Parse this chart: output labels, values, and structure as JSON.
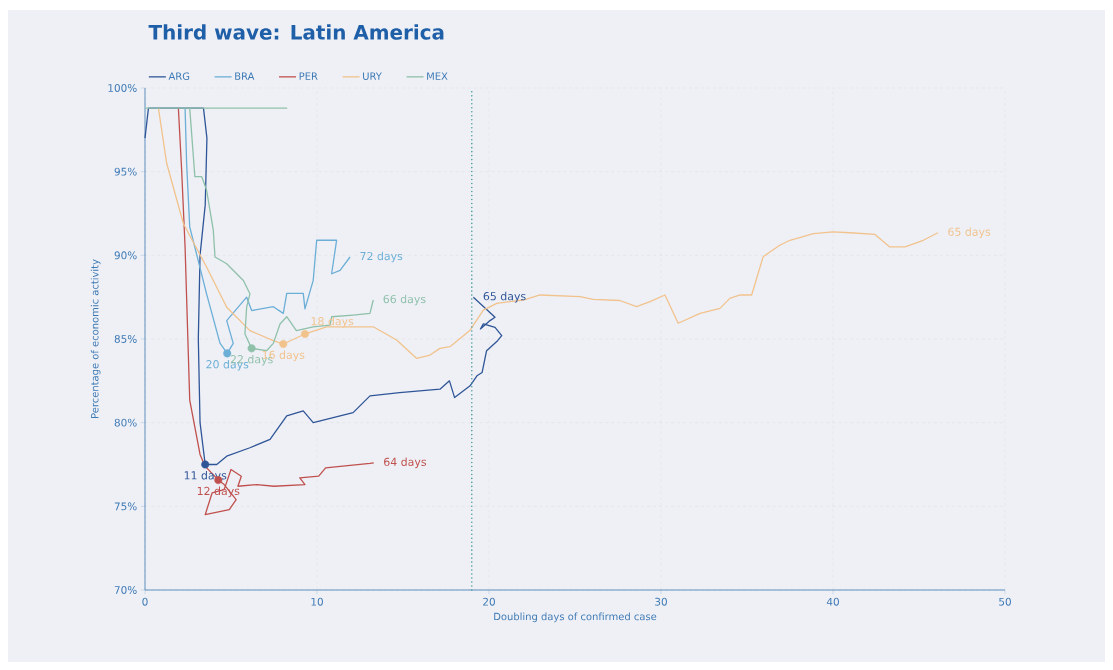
{
  "chart_data": {
    "type": "line",
    "title": "Third wave: Latin America",
    "xlabel": "Doubling days of confirmed case",
    "ylabel": "Percentage of economic activity",
    "xlim": [
      0,
      50
    ],
    "xticks": [
      0,
      10,
      20,
      30,
      40,
      50
    ],
    "ylim": [
      70,
      100
    ],
    "yticks": [
      {
        "value": 70,
        "label": "70%"
      },
      {
        "value": 75,
        "label": "75%"
      },
      {
        "value": 80,
        "label": "80%"
      },
      {
        "value": 85,
        "label": "85%"
      },
      {
        "value": 90,
        "label": "90%"
      },
      {
        "value": 95,
        "label": "95%"
      },
      {
        "value": 100,
        "label": "100%"
      }
    ],
    "grid": true,
    "legend": "top left",
    "annotations": [
      {
        "text": "65 days",
        "x": 19.09,
        "y": 87.5
      },
      {
        "text": "72 days",
        "x": 11.92,
        "y": 89.9
      },
      {
        "text": "64 days",
        "x": 13.3,
        "y": 77.6
      },
      {
        "text": "65 days",
        "x": 46.1,
        "y": 91.35
      },
      {
        "text": "66 days",
        "x": 13.27,
        "y": 87.33
      },
      {
        "text": "11 days",
        "x": 3.5,
        "y": 77.5
      },
      {
        "text": "12 days",
        "x": 4.26,
        "y": 76.57
      },
      {
        "text": "20 days",
        "x": 4.78,
        "y": 84.14
      },
      {
        "text": "22 days",
        "x": 6.2,
        "y": 84.44
      },
      {
        "text": "16 days",
        "x": 8.04,
        "y": 84.7
      },
      {
        "text": "18 days",
        "x": 9.3,
        "y": 85.3
      }
    ],
    "ref_lines": [
      {
        "axis": "x",
        "value": 19,
        "color": "#4a9e9c",
        "line_style": "dotted"
      }
    ],
    "series": [
      {
        "name": "ARG",
        "color": "#2f5597",
        "x": [
          0,
          0.2,
          3.4,
          3.6,
          3.5,
          3.2,
          3.1,
          3.2,
          3.5,
          4.17,
          4.75,
          6.1,
          7.27,
          8.24,
          9.2,
          9.78,
          12.1,
          13.08,
          14.8,
          17.15,
          17.7,
          18.0,
          18.9,
          19.3,
          19.6,
          19.86,
          20.5,
          20.74,
          20.35,
          19.67,
          19.5,
          20.06,
          20.35,
          19.09
        ],
        "values": [
          97,
          98.8,
          98.8,
          97,
          93,
          90,
          85,
          80,
          77.5,
          77.5,
          78,
          78.5,
          79,
          80.4,
          80.7,
          80.0,
          80.6,
          81.6,
          81.8,
          82,
          82.5,
          81.5,
          82.2,
          82.8,
          83,
          84.3,
          84.9,
          85.2,
          85.7,
          85.9,
          85.6,
          86.1,
          86.3,
          87.5
        ]
      },
      {
        "name": "BRA",
        "color": "#6baed6",
        "x": [
          2.33,
          2.42,
          2.6,
          3.58,
          4.36,
          4.78,
          5.13,
          4.75,
          5.91,
          6.2,
          7.46,
          8.04,
          8.24,
          9.2,
          9.3,
          9.78,
          9.98,
          11.14,
          10.85,
          11.34,
          11.92
        ],
        "values": [
          98.8,
          95.5,
          91.7,
          87.7,
          84.75,
          84.14,
          84.74,
          86.1,
          87.5,
          86.7,
          86.93,
          86.53,
          87.73,
          87.73,
          86.8,
          88.5,
          90.9,
          90.9,
          88.9,
          89.1,
          89.9
        ]
      },
      {
        "name": "PER",
        "color": "#c0504d",
        "x": [
          1.94,
          2.13,
          2.33,
          2.6,
          3.2,
          3.49,
          4.26,
          4.6,
          5.3,
          4.9,
          3.5,
          3.9,
          4.6,
          5.0,
          5.6,
          5.4,
          6.5,
          7.5,
          9.3,
          9.0,
          10.1,
          10.5,
          11.5,
          13.08,
          13.3
        ],
        "values": [
          98.8,
          95.1,
          90.5,
          81.35,
          78.1,
          77.4,
          76.57,
          76.3,
          75.4,
          74.8,
          74.5,
          75.8,
          76.0,
          77.2,
          76.8,
          76.2,
          76.3,
          76.2,
          76.3,
          76.7,
          76.8,
          77.3,
          77.4,
          77.57,
          77.6
        ]
      },
      {
        "name": "URY",
        "color": "#f2c28c",
        "x": [
          0.78,
          1.26,
          2.23,
          3.58,
          4.75,
          6.1,
          7.46,
          8.04,
          9.3,
          10.56,
          13.27,
          14.63,
          15.8,
          16.57,
          17.15,
          17.73,
          18.9,
          19.67,
          20.45,
          21.99,
          22.97,
          25.3,
          26.06,
          27.6,
          28.58,
          29.36,
          30.23,
          31.0,
          32.27,
          33.43,
          34.0,
          34.6,
          35.27,
          35.94,
          36.9,
          37.5,
          38.86,
          40.0,
          40.99,
          42.44,
          43.3,
          44.19,
          45.25,
          46.1
        ],
        "values": [
          98.8,
          95.5,
          91.9,
          89.3,
          86.9,
          85.5,
          84.9,
          84.7,
          85.3,
          85.73,
          85.73,
          84.94,
          83.84,
          84.04,
          84.44,
          84.54,
          85.53,
          86.73,
          87.13,
          87.33,
          87.63,
          87.53,
          87.37,
          87.3,
          86.93,
          87.23,
          87.63,
          85.94,
          86.53,
          86.83,
          87.43,
          87.63,
          87.63,
          89.92,
          90.6,
          90.9,
          91.3,
          91.4,
          91.35,
          91.25,
          90.5,
          90.5,
          90.9,
          91.35
        ]
      },
      {
        "name": "MEX",
        "color": "#8fc0a9",
        "x": [
          0,
          8.24,
          2.6,
          2.9,
          3.3,
          3.58,
          3.97,
          4.07,
          4.75,
          5.72,
          6.1,
          5.91,
          5.81,
          6.2,
          7.07,
          7.46,
          7.85,
          8.24,
          8.8,
          9.78,
          10.76,
          10.85,
          12.1,
          13.08,
          13.27
        ],
        "values": [
          98.8,
          98.8,
          98.8,
          94.7,
          94.7,
          93.9,
          91.5,
          89.9,
          89.5,
          88.5,
          87.7,
          86.9,
          85.3,
          84.44,
          84.3,
          84.74,
          85.9,
          86.33,
          85.5,
          85.73,
          85.83,
          86.33,
          86.43,
          86.53,
          87.33
        ]
      },
      {
        "type": "scatter",
        "color": "#2f5597",
        "x": [
          3.5
        ],
        "values": [
          77.5
        ]
      },
      {
        "type": "scatter",
        "color": "#c0504d",
        "x": [
          4.26
        ],
        "values": [
          76.57
        ]
      },
      {
        "type": "scatter",
        "color": "#6baed6",
        "x": [
          4.78
        ],
        "values": [
          84.14
        ]
      },
      {
        "type": "scatter",
        "color": "#8fc0a9",
        "x": [
          6.2
        ],
        "values": [
          84.44
        ]
      },
      {
        "type": "scatter",
        "color": "#f2c28c",
        "x": [
          8.04,
          9.3
        ],
        "values": [
          84.7,
          85.3
        ]
      }
    ]
  }
}
